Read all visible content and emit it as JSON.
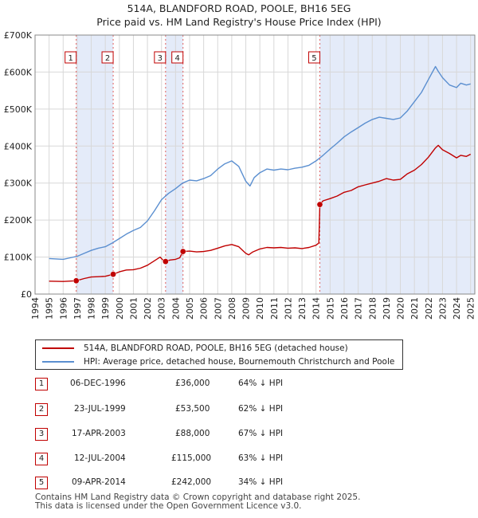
{
  "header": {
    "title": "514A, BLANDFORD ROAD, POOLE, BH16 5EG",
    "subtitle": "Price paid vs. HM Land Registry's House Price Index (HPI)"
  },
  "chart_data": {
    "type": "line",
    "x_range": [
      1994,
      2025.3
    ],
    "ylim": [
      0,
      700000
    ],
    "y_ticks": [
      {
        "value": 0,
        "label": "£0"
      },
      {
        "value": 100000,
        "label": "£100K"
      },
      {
        "value": 200000,
        "label": "£200K"
      },
      {
        "value": 300000,
        "label": "£300K"
      },
      {
        "value": 400000,
        "label": "£400K"
      },
      {
        "value": 500000,
        "label": "£500K"
      },
      {
        "value": 600000,
        "label": "£600K"
      },
      {
        "value": 700000,
        "label": "£700K"
      }
    ],
    "x_ticks": [
      "1994",
      "1995",
      "1996",
      "1997",
      "1998",
      "1999",
      "2000",
      "2001",
      "2002",
      "2003",
      "2004",
      "2005",
      "2006",
      "2007",
      "2008",
      "2009",
      "2010",
      "2011",
      "2012",
      "2013",
      "2014",
      "2015",
      "2016",
      "2017",
      "2018",
      "2019",
      "2020",
      "2021",
      "2022",
      "2023",
      "2024",
      "2025"
    ],
    "grid": true,
    "series": [
      {
        "name": "514A, BLANDFORD ROAD, POOLE, BH16 5EG (detached house)",
        "color": "#c00000",
        "points": [
          [
            1995.0,
            35000
          ],
          [
            1996.0,
            34000
          ],
          [
            1996.93,
            36000
          ],
          [
            1997.5,
            42000
          ],
          [
            1998.0,
            46000
          ],
          [
            1998.5,
            47000
          ],
          [
            1999.0,
            48000
          ],
          [
            1999.56,
            53500
          ],
          [
            2000.0,
            60000
          ],
          [
            2000.5,
            65000
          ],
          [
            2001.0,
            66000
          ],
          [
            2001.5,
            70000
          ],
          [
            2002.0,
            78000
          ],
          [
            2002.5,
            90000
          ],
          [
            2002.9,
            100000
          ],
          [
            2003.1,
            92000
          ],
          [
            2003.29,
            88000
          ],
          [
            2003.6,
            92000
          ],
          [
            2004.0,
            94000
          ],
          [
            2004.3,
            98000
          ],
          [
            2004.53,
            115000
          ],
          [
            2005.0,
            116000
          ],
          [
            2005.5,
            114000
          ],
          [
            2006.0,
            115000
          ],
          [
            2006.5,
            118000
          ],
          [
            2007.0,
            124000
          ],
          [
            2007.5,
            130000
          ],
          [
            2008.0,
            134000
          ],
          [
            2008.5,
            128000
          ],
          [
            2009.0,
            110000
          ],
          [
            2009.2,
            106000
          ],
          [
            2009.5,
            114000
          ],
          [
            2010.0,
            122000
          ],
          [
            2010.5,
            126000
          ],
          [
            2011.0,
            125000
          ],
          [
            2011.5,
            126000
          ],
          [
            2012.0,
            124000
          ],
          [
            2012.5,
            125000
          ],
          [
            2013.0,
            123000
          ],
          [
            2013.5,
            126000
          ],
          [
            2014.0,
            132000
          ],
          [
            2014.2,
            138000
          ],
          [
            2014.27,
            242000
          ],
          [
            2014.5,
            252000
          ],
          [
            2015.0,
            258000
          ],
          [
            2015.5,
            265000
          ],
          [
            2016.0,
            275000
          ],
          [
            2016.5,
            280000
          ],
          [
            2017.0,
            290000
          ],
          [
            2017.5,
            295000
          ],
          [
            2018.0,
            300000
          ],
          [
            2018.5,
            305000
          ],
          [
            2019.0,
            312000
          ],
          [
            2019.5,
            308000
          ],
          [
            2020.0,
            310000
          ],
          [
            2020.5,
            325000
          ],
          [
            2021.0,
            335000
          ],
          [
            2021.5,
            350000
          ],
          [
            2022.0,
            370000
          ],
          [
            2022.5,
            395000
          ],
          [
            2022.7,
            402000
          ],
          [
            2023.0,
            390000
          ],
          [
            2023.5,
            380000
          ],
          [
            2024.0,
            368000
          ],
          [
            2024.3,
            375000
          ],
          [
            2024.7,
            372000
          ],
          [
            2025.0,
            378000
          ]
        ]
      },
      {
        "name": "HPI: Average price, detached house, Bournemouth Christchurch and Poole",
        "color": "#5b8fd0",
        "points": [
          [
            1995.0,
            96000
          ],
          [
            1995.5,
            95000
          ],
          [
            1996.0,
            94000
          ],
          [
            1996.5,
            98000
          ],
          [
            1997.0,
            102000
          ],
          [
            1997.5,
            110000
          ],
          [
            1998.0,
            118000
          ],
          [
            1998.5,
            124000
          ],
          [
            1999.0,
            128000
          ],
          [
            1999.5,
            138000
          ],
          [
            2000.0,
            150000
          ],
          [
            2000.5,
            162000
          ],
          [
            2001.0,
            172000
          ],
          [
            2001.5,
            180000
          ],
          [
            2002.0,
            198000
          ],
          [
            2002.5,
            225000
          ],
          [
            2003.0,
            255000
          ],
          [
            2003.5,
            272000
          ],
          [
            2004.0,
            285000
          ],
          [
            2004.5,
            300000
          ],
          [
            2005.0,
            308000
          ],
          [
            2005.5,
            306000
          ],
          [
            2006.0,
            312000
          ],
          [
            2006.5,
            320000
          ],
          [
            2007.0,
            338000
          ],
          [
            2007.5,
            352000
          ],
          [
            2008.0,
            360000
          ],
          [
            2008.5,
            345000
          ],
          [
            2009.0,
            305000
          ],
          [
            2009.3,
            292000
          ],
          [
            2009.6,
            315000
          ],
          [
            2010.0,
            328000
          ],
          [
            2010.5,
            338000
          ],
          [
            2011.0,
            335000
          ],
          [
            2011.5,
            338000
          ],
          [
            2012.0,
            336000
          ],
          [
            2012.5,
            340000
          ],
          [
            2013.0,
            343000
          ],
          [
            2013.5,
            348000
          ],
          [
            2014.0,
            360000
          ],
          [
            2014.5,
            375000
          ],
          [
            2015.0,
            392000
          ],
          [
            2015.5,
            408000
          ],
          [
            2016.0,
            425000
          ],
          [
            2016.5,
            438000
          ],
          [
            2017.0,
            450000
          ],
          [
            2017.5,
            462000
          ],
          [
            2018.0,
            472000
          ],
          [
            2018.5,
            478000
          ],
          [
            2019.0,
            475000
          ],
          [
            2019.5,
            472000
          ],
          [
            2020.0,
            476000
          ],
          [
            2020.5,
            495000
          ],
          [
            2021.0,
            520000
          ],
          [
            2021.5,
            545000
          ],
          [
            2022.0,
            580000
          ],
          [
            2022.5,
            615000
          ],
          [
            2022.7,
            602000
          ],
          [
            2023.0,
            585000
          ],
          [
            2023.5,
            565000
          ],
          [
            2024.0,
            558000
          ],
          [
            2024.3,
            570000
          ],
          [
            2024.7,
            565000
          ],
          [
            2025.0,
            568000
          ]
        ]
      }
    ],
    "sales": [
      {
        "id": "1",
        "x": 1996.93,
        "y": 36000,
        "date": "06-DEC-1996",
        "price": "£36,000",
        "hpi": "64% ↓ HPI"
      },
      {
        "id": "2",
        "x": 1999.56,
        "y": 53500,
        "date": "23-JUL-1999",
        "price": "£53,500",
        "hpi": "62% ↓ HPI"
      },
      {
        "id": "3",
        "x": 2003.29,
        "y": 88000,
        "date": "17-APR-2003",
        "price": "£88,000",
        "hpi": "67% ↓ HPI"
      },
      {
        "id": "4",
        "x": 2004.53,
        "y": 115000,
        "date": "12-JUL-2004",
        "price": "£115,000",
        "hpi": "63% ↓ HPI"
      },
      {
        "id": "5",
        "x": 2014.27,
        "y": 242000,
        "date": "09-APR-2014",
        "price": "£242,000",
        "hpi": "34% ↓ HPI"
      }
    ]
  },
  "legend": {
    "property_label": "514A, BLANDFORD ROAD, POOLE, BH16 5EG (detached house)",
    "hpi_label": "HPI: Average price, detached house, Bournemouth Christchurch and Poole"
  },
  "table": {
    "rows": [
      {
        "id": "1",
        "date": "06-DEC-1996",
        "price": "£36,000",
        "hpi": "64% ↓ HPI"
      },
      {
        "id": "2",
        "date": "23-JUL-1999",
        "price": "£53,500",
        "hpi": "62% ↓ HPI"
      },
      {
        "id": "3",
        "date": "17-APR-2003",
        "price": "£88,000",
        "hpi": "67% ↓ HPI"
      },
      {
        "id": "4",
        "date": "12-JUL-2004",
        "price": "£115,000",
        "hpi": "63% ↓ HPI"
      },
      {
        "id": "5",
        "date": "09-APR-2014",
        "price": "£242,000",
        "hpi": "34% ↓ HPI"
      }
    ]
  },
  "footer": {
    "line1": "Contains HM Land Registry data © Crown copyright and database right 2025.",
    "line2": "This data is licensed under the Open Government Licence v3.0."
  },
  "colors": {
    "property": "#c00000",
    "hpi": "#5b8fd0",
    "shade": "#dde6f7"
  }
}
